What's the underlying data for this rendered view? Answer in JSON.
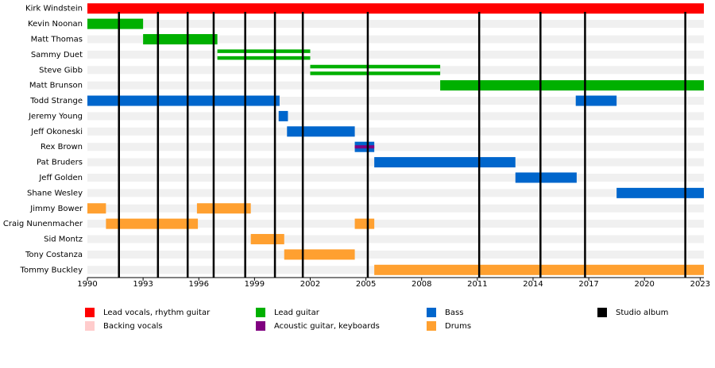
{
  "chart_data": {
    "type": "timeline",
    "xlim": [
      1990,
      2023.2
    ],
    "xticks": [
      1990,
      1993,
      1996,
      1999,
      2002,
      2005,
      2008,
      2011,
      2014,
      2017,
      2020,
      2023
    ],
    "roles": [
      {
        "name": "Lead vocals, rhythm guitar",
        "color": "#ff0000"
      },
      {
        "name": "Backing vocals",
        "color": "#ffcccc"
      },
      {
        "name": "Lead guitar",
        "color": "#00b000"
      },
      {
        "name": "Acoustic guitar, keyboards",
        "color": "#800080"
      },
      {
        "name": "Bass",
        "color": "#0066cc"
      },
      {
        "name": "Drums",
        "color": "#ffa030"
      }
    ],
    "album_label": "Studio album",
    "albums": [
      1991.7,
      1993.8,
      1995.4,
      1996.8,
      1998.5,
      2000.1,
      2001.6,
      2005.1,
      2011.1,
      2014.4,
      2016.8,
      2022.2
    ],
    "members": [
      {
        "name": "Kirk Windstein",
        "periods": [
          {
            "start": 1990,
            "end": 2023.2,
            "role": "Lead vocals, rhythm guitar"
          }
        ]
      },
      {
        "name": "Kevin Noonan",
        "periods": [
          {
            "start": 1990,
            "end": 1993,
            "role": "Lead guitar"
          }
        ]
      },
      {
        "name": "Matt Thomas",
        "periods": [
          {
            "start": 1993,
            "end": 1997,
            "role": "Lead guitar"
          }
        ]
      },
      {
        "name": "Sammy Duet",
        "periods": [
          {
            "start": 1997,
            "end": 2002,
            "role": "Lead guitar",
            "with": "Backing vocals"
          }
        ]
      },
      {
        "name": "Steve Gibb",
        "periods": [
          {
            "start": 2002,
            "end": 2009,
            "role": "Lead guitar",
            "with": "Backing vocals"
          }
        ]
      },
      {
        "name": "Matt Brunson",
        "periods": [
          {
            "start": 2009,
            "end": 2023.2,
            "role": "Lead guitar"
          }
        ]
      },
      {
        "name": "Todd Strange",
        "periods": [
          {
            "start": 1990,
            "end": 2000.35,
            "role": "Bass"
          },
          {
            "start": 2016.3,
            "end": 2018.5,
            "role": "Bass"
          }
        ]
      },
      {
        "name": "Jeremy Young",
        "periods": [
          {
            "start": 2000.3,
            "end": 2000.8,
            "role": "Bass"
          }
        ]
      },
      {
        "name": "Jeff Okoneski",
        "periods": [
          {
            "start": 2000.75,
            "end": 2004.4,
            "role": "Bass"
          }
        ]
      },
      {
        "name": "Rex Brown",
        "periods": [
          {
            "start": 2004.4,
            "end": 2005.45,
            "role": "Bass",
            "with": "Acoustic guitar, keyboards"
          }
        ]
      },
      {
        "name": "Pat Bruders",
        "periods": [
          {
            "start": 2005.45,
            "end": 2013.05,
            "role": "Bass"
          }
        ]
      },
      {
        "name": "Jeff Golden",
        "periods": [
          {
            "start": 2013.05,
            "end": 2016.35,
            "role": "Bass"
          }
        ]
      },
      {
        "name": "Shane Wesley",
        "periods": [
          {
            "start": 2018.5,
            "end": 2023.2,
            "role": "Bass"
          }
        ]
      },
      {
        "name": "Jimmy Bower",
        "periods": [
          {
            "start": 1990,
            "end": 1991,
            "role": "Drums"
          },
          {
            "start": 1995.9,
            "end": 1998.8,
            "role": "Drums"
          }
        ]
      },
      {
        "name": "Craig Nunenmacher",
        "periods": [
          {
            "start": 1991,
            "end": 1995.95,
            "role": "Drums"
          },
          {
            "start": 2004.4,
            "end": 2005.45,
            "role": "Drums"
          }
        ]
      },
      {
        "name": "Sid Montz",
        "periods": [
          {
            "start": 1998.8,
            "end": 2000.6,
            "role": "Drums"
          }
        ]
      },
      {
        "name": "Tony Costanza",
        "periods": [
          {
            "start": 2000.6,
            "end": 2004.4,
            "role": "Drums"
          }
        ]
      },
      {
        "name": "Tommy Buckley",
        "periods": [
          {
            "start": 2005.45,
            "end": 2023.2,
            "role": "Drums"
          }
        ]
      }
    ]
  }
}
